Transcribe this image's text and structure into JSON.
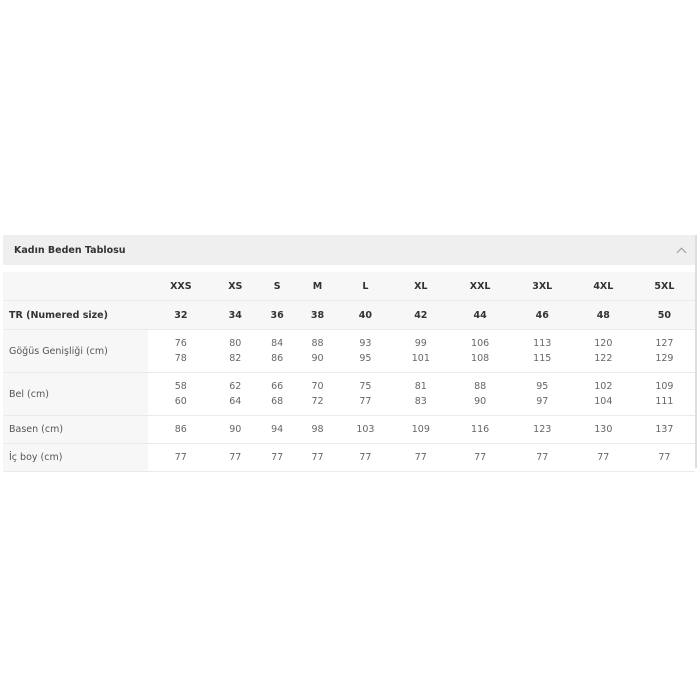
{
  "header": {
    "title": "Kadın Beden Tablosu",
    "toggle_icon": "chevron-up-icon"
  },
  "table": {
    "sizes": [
      "XXS",
      "XS",
      "S",
      "M",
      "L",
      "XL",
      "XXL",
      "3XL",
      "4XL",
      "5XL"
    ],
    "rows": [
      {
        "label": "TR (Numered size)",
        "values": [
          "32",
          "34",
          "36",
          "38",
          "40",
          "42",
          "44",
          "46",
          "48",
          "50"
        ]
      },
      {
        "label": "Göğüs Genişliği (cm)",
        "values": [
          [
            "76",
            "78"
          ],
          [
            "80",
            "82"
          ],
          [
            "84",
            "86"
          ],
          [
            "88",
            "90"
          ],
          [
            "93",
            "95"
          ],
          [
            "99",
            "101"
          ],
          [
            "106",
            "108"
          ],
          [
            "113",
            "115"
          ],
          [
            "120",
            "122"
          ],
          [
            "127",
            "129"
          ]
        ]
      },
      {
        "label": "Bel (cm)",
        "values": [
          [
            "58",
            "60"
          ],
          [
            "62",
            "64"
          ],
          [
            "66",
            "68"
          ],
          [
            "70",
            "72"
          ],
          [
            "75",
            "77"
          ],
          [
            "81",
            "83"
          ],
          [
            "88",
            "90"
          ],
          [
            "95",
            "97"
          ],
          [
            "102",
            "104"
          ],
          [
            "109",
            "111"
          ]
        ]
      },
      {
        "label": "Basen (cm)",
        "values": [
          "86",
          "90",
          "94",
          "98",
          "103",
          "109",
          "116",
          "123",
          "130",
          "137"
        ]
      },
      {
        "label": "İç boy (cm)",
        "values": [
          "77",
          "77",
          "77",
          "77",
          "77",
          "77",
          "77",
          "77",
          "77",
          "77"
        ]
      }
    ]
  }
}
